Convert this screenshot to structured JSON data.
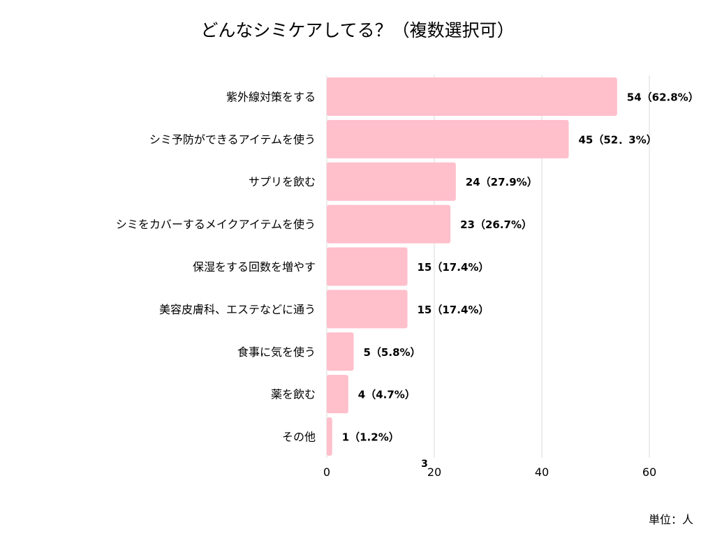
{
  "chart_data": {
    "type": "bar",
    "orientation": "horizontal",
    "title": "どんなシミケアしてる？（複数選択可）",
    "unit_label": "単位：人",
    "categories": [
      "紫外線対策をする",
      "シミ予防ができるアイテムを使う",
      "サプリを飲む",
      "シミをカバーするメイクアイテムを使う",
      "保湿をする回数を増やす",
      "美容皮膚科、エステなどに通う",
      "食事に気を使う",
      "薬を飲む",
      "その他"
    ],
    "values": [
      54,
      45,
      24,
      23,
      15,
      15,
      5,
      4,
      1
    ],
    "data_labels": [
      "54（62.8%）",
      "45（52．3%）",
      "24（27.9%）",
      "23（26.7%）",
      "15（17.4%）",
      "15（17.4%）",
      "5（5.8%）",
      "4（4.7%）",
      "1（1.2%）"
    ],
    "xlim": [
      0,
      60
    ],
    "x_ticks": [
      0,
      20,
      40,
      60
    ],
    "x_tick_labels": [
      "0",
      "20",
      "40",
      "60"
    ],
    "stray_label": "3",
    "grid": true,
    "bar_color": "#ffbfcb",
    "grid_color": "#d9d9d9"
  }
}
